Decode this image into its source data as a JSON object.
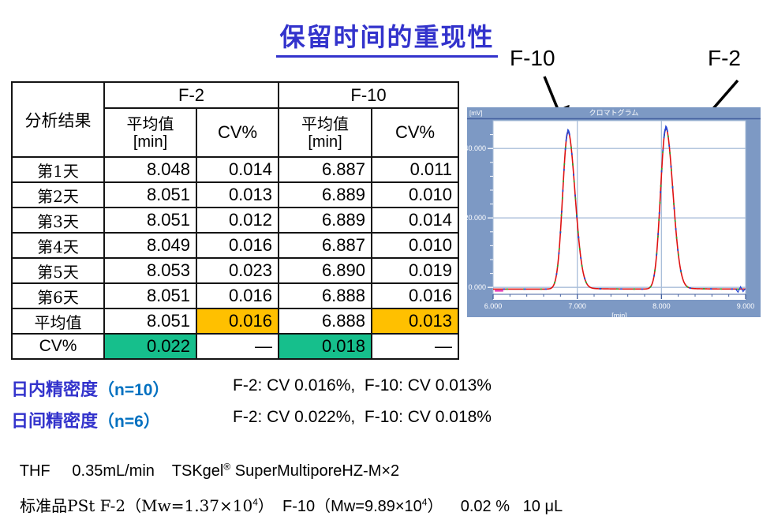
{
  "title": "保留时间的重现性",
  "colors": {
    "title_blue": "#3333CC",
    "accent_blue": "#0070C0",
    "highlight_orange": "#FFC000",
    "highlight_green": "#16BF8C",
    "panel_blue": "#7D99C4",
    "grid_blue": "#A9BED9",
    "axis_dark_blue": "#44609F",
    "trace_red": "#DE1111",
    "trace_blue": "#2545D5",
    "trace_green": "#2FA82F",
    "noise_magenta": "#E62EB4"
  },
  "table": {
    "corner_header": "分析结果",
    "group_headers": [
      "F-2",
      "F-10"
    ],
    "sub_headers": [
      {
        "top": "平均值",
        "unit": "[min]"
      },
      {
        "top": "CV%"
      },
      {
        "top": "平均值",
        "unit": "[min]"
      },
      {
        "top": "CV%"
      }
    ],
    "rows": [
      {
        "label": "第1天",
        "cells": [
          {
            "v": "8.048"
          },
          {
            "v": "0.014"
          },
          {
            "v": "6.887"
          },
          {
            "v": "0.011"
          }
        ]
      },
      {
        "label": "第2天",
        "cells": [
          {
            "v": "8.051"
          },
          {
            "v": "0.013"
          },
          {
            "v": "6.889"
          },
          {
            "v": "0.010"
          }
        ]
      },
      {
        "label": "第3天",
        "cells": [
          {
            "v": "8.051"
          },
          {
            "v": "0.012"
          },
          {
            "v": "6.889"
          },
          {
            "v": "0.014"
          }
        ]
      },
      {
        "label": "第4天",
        "cells": [
          {
            "v": "8.049"
          },
          {
            "v": "0.016"
          },
          {
            "v": "6.887"
          },
          {
            "v": "0.010"
          }
        ]
      },
      {
        "label": "第5天",
        "cells": [
          {
            "v": "8.053"
          },
          {
            "v": "0.023"
          },
          {
            "v": "6.890"
          },
          {
            "v": "0.019"
          }
        ]
      },
      {
        "label": "第6天",
        "cells": [
          {
            "v": "8.051"
          },
          {
            "v": "0.016"
          },
          {
            "v": "6.888"
          },
          {
            "v": "0.016"
          }
        ]
      },
      {
        "label": "平均值",
        "cells": [
          {
            "v": "8.051"
          },
          {
            "v": "0.016",
            "bg": "highlight_orange"
          },
          {
            "v": "6.888"
          },
          {
            "v": "0.013",
            "bg": "highlight_orange"
          }
        ]
      },
      {
        "label": "CV%",
        "sans": true,
        "cells": [
          {
            "v": "0.022",
            "bg": "highlight_green"
          },
          {
            "v": "—"
          },
          {
            "v": "0.018",
            "bg": "highlight_green"
          },
          {
            "v": "—"
          }
        ]
      }
    ]
  },
  "chart_data": {
    "type": "line",
    "title": "クロマトグラム",
    "ylabel": "[mV]",
    "xlabel": "[min]",
    "xlim": [
      6.0,
      9.0
    ],
    "ylim": [
      -2,
      48
    ],
    "x_ticks": [
      6.0,
      7.0,
      8.0,
      9.0
    ],
    "y_ticks": [
      0.0,
      20.0,
      40.0
    ],
    "x_gridlines": [
      7.0,
      8.0
    ],
    "baseline_mV": -0.5,
    "peaks": [
      {
        "label": "F-10",
        "retention_min": 6.888,
        "height_mV": 45
      },
      {
        "label": "F-2",
        "retention_min": 8.051,
        "height_mV": 46
      }
    ],
    "overlaid_trace_colors": [
      "trace_red",
      "trace_blue",
      "trace_green"
    ]
  },
  "precision": [
    {
      "label": "日内精密度",
      "n": "（n=10）",
      "value": "F-2: CV 0.016%,  F-10: CV 0.013%"
    },
    {
      "label": "日间精密度",
      "n": "（n=6）",
      "value": "F-2: CV 0.022%,  F-10: CV 0.018%"
    }
  ],
  "conditions": {
    "line1_pre": "THF     0.35mL/min    TSKgel",
    "line1_reg": "®",
    "line1_post": " SuperMultiporeHZ-M×2",
    "line2_p1": "标准品PSt F-2（Mw=1.37×10",
    "line2_sup1": "4",
    "line2_p2": "）  F-10（Mw=9.89×10",
    "line2_sup2": "4",
    "line2_p3": "）    0.02 %   10 μL"
  }
}
